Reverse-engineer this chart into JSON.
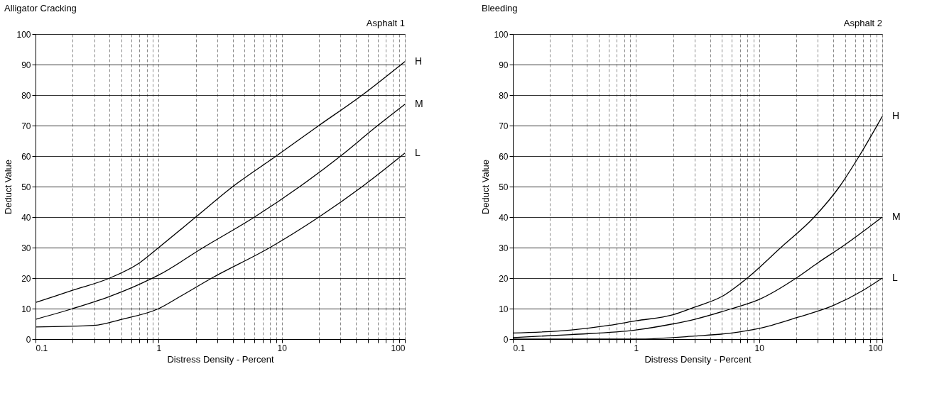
{
  "chart_data": [
    {
      "type": "line",
      "title": "Alligator Cracking",
      "annotations": [
        "Asphalt 1"
      ],
      "xlabel": "Distress Density - Percent",
      "ylabel": "Deduct Value",
      "log": "x",
      "grid": true,
      "legend": false,
      "marker": "none",
      "line_style": "solid",
      "xlim": [
        0.1,
        100
      ],
      "ylim": [
        0,
        100
      ],
      "yticks": [
        0,
        10,
        20,
        30,
        40,
        50,
        60,
        70,
        80,
        90,
        100
      ],
      "xticks": [
        0.1,
        {
          "value": 0.2,
          "label": null
        },
        {
          "value": 0.3,
          "label": null
        },
        {
          "value": 0.4,
          "label": null
        },
        {
          "value": 0.5,
          "label": null
        },
        {
          "value": 0.6,
          "label": null
        },
        {
          "value": 0.7,
          "label": null
        },
        {
          "value": 0.8,
          "label": null
        },
        {
          "value": 0.9,
          "label": null
        },
        1,
        {
          "value": 2,
          "label": null
        },
        {
          "value": 3,
          "label": null
        },
        {
          "value": 4,
          "label": null
        },
        {
          "value": 5,
          "label": null
        },
        {
          "value": 6,
          "label": null
        },
        {
          "value": 7,
          "label": null
        },
        {
          "value": 8,
          "label": null
        },
        {
          "value": 9,
          "label": null
        },
        10,
        {
          "value": 20,
          "label": null
        },
        {
          "value": 30,
          "label": null
        },
        {
          "value": 40,
          "label": null
        },
        {
          "value": 50,
          "label": null
        },
        {
          "value": 60,
          "label": null
        },
        {
          "value": 70,
          "label": null
        },
        {
          "value": 80,
          "label": null
        },
        {
          "value": 90,
          "label": null
        },
        100
      ],
      "series": [
        {
          "name": "H",
          "color": "#000000",
          "x": [
            0.1,
            0.2,
            0.4,
            0.7,
            1,
            2,
            4,
            9,
            20,
            45,
            100
          ],
          "values": [
            12,
            16,
            20,
            25,
            30,
            40,
            50,
            60,
            70,
            80,
            91
          ]
        },
        {
          "name": "M",
          "color": "#000000",
          "x": [
            0.1,
            0.2,
            0.4,
            0.7,
            1,
            2.3,
            6,
            14,
            30,
            60,
            100
          ],
          "values": [
            6.5,
            10,
            14,
            18,
            21,
            30,
            40,
            50,
            60,
            70,
            77
          ]
        },
        {
          "name": "L",
          "color": "#000000",
          "x": [
            0.1,
            0.3,
            0.5,
            1,
            1.5,
            2.7,
            8,
            20,
            45,
            100
          ],
          "values": [
            4,
            4.5,
            6.5,
            10,
            14,
            20,
            30,
            40,
            50,
            61
          ]
        }
      ]
    },
    {
      "type": "line",
      "title": "Bleeding",
      "annotations": [
        "Asphalt 2"
      ],
      "xlabel": "Distress Density - Percent",
      "ylabel": "Deduct Value",
      "log": "x",
      "grid": true,
      "legend": false,
      "marker": "none",
      "line_style": "solid",
      "xlim": [
        0.1,
        100
      ],
      "ylim": [
        0,
        100
      ],
      "yticks": [
        0,
        10,
        20,
        30,
        40,
        50,
        60,
        70,
        80,
        90,
        100
      ],
      "xticks": [
        0.1,
        {
          "value": 0.2,
          "label": null
        },
        {
          "value": 0.3,
          "label": null
        },
        {
          "value": 0.4,
          "label": null
        },
        {
          "value": 0.5,
          "label": null
        },
        {
          "value": 0.6,
          "label": null
        },
        {
          "value": 0.7,
          "label": null
        },
        {
          "value": 0.8,
          "label": null
        },
        {
          "value": 0.9,
          "label": null
        },
        1,
        {
          "value": 2,
          "label": null
        },
        {
          "value": 3,
          "label": null
        },
        {
          "value": 4,
          "label": null
        },
        {
          "value": 5,
          "label": null
        },
        {
          "value": 6,
          "label": null
        },
        {
          "value": 7,
          "label": null
        },
        {
          "value": 8,
          "label": null
        },
        {
          "value": 9,
          "label": null
        },
        10,
        {
          "value": 20,
          "label": null
        },
        {
          "value": 30,
          "label": null
        },
        {
          "value": 40,
          "label": null
        },
        {
          "value": 50,
          "label": null
        },
        {
          "value": 60,
          "label": null
        },
        {
          "value": 70,
          "label": null
        },
        {
          "value": 80,
          "label": null
        },
        {
          "value": 90,
          "label": null
        },
        100
      ],
      "series": [
        {
          "name": "H",
          "color": "#000000",
          "x": [
            0.1,
            0.3,
            0.6,
            1,
            2,
            3,
            5,
            8,
            15,
            28,
            45,
            65,
            100
          ],
          "values": [
            2,
            3,
            4.5,
            6,
            8,
            10.5,
            14,
            20,
            30,
            40,
            50,
            60,
            73
          ]
        },
        {
          "name": "M",
          "color": "#000000",
          "x": [
            0.1,
            0.3,
            1,
            2,
            3,
            6,
            10,
            20,
            30,
            50,
            100
          ],
          "values": [
            0.5,
            1.5,
            3,
            5,
            6.5,
            10,
            13,
            20,
            25,
            31,
            40
          ]
        },
        {
          "name": "L",
          "color": "#000000",
          "x": [
            0.1,
            1,
            3,
            6,
            10,
            20,
            40,
            70,
            100
          ],
          "values": [
            0,
            0,
            1,
            2,
            3.5,
            7,
            11,
            16,
            20
          ]
        }
      ]
    }
  ]
}
